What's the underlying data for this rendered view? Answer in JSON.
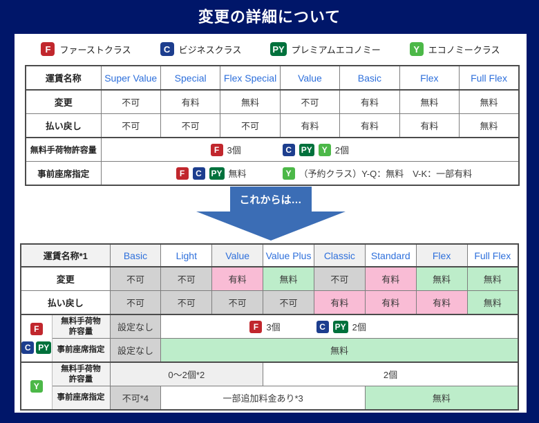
{
  "page": {
    "title": "変更の詳細について"
  },
  "colors": {
    "background_navy": "#001669",
    "arrow_blue": "#3b6db5",
    "column_header_blue": "#2d6fdb",
    "badge_first": "#c1272d",
    "badge_business": "#1d3e8e",
    "badge_premium_economy": "#00713c",
    "badge_economy": "#4cb848",
    "cell_not_allowed_gray": "#d2d2d2",
    "cell_paid_pink": "#f9bcd5",
    "cell_free_green": "#bdedca"
  },
  "legend": {
    "items": [
      {
        "code": "F",
        "name": "first-class",
        "label": "ファーストクラス"
      },
      {
        "code": "C",
        "name": "business-class",
        "label": "ビジネスクラス"
      },
      {
        "code": "PY",
        "name": "premium-economy",
        "label": "プレミアムエコノミー"
      },
      {
        "code": "Y",
        "name": "economy-class",
        "label": "エコノミークラス"
      }
    ]
  },
  "before_table": {
    "columns": [
      "運賃名称",
      "Super Value",
      "Special",
      "Flex Special",
      "Value",
      "Basic",
      "Flex",
      "Full Flex"
    ],
    "rows": [
      {
        "label": "変更",
        "cells": [
          "不可",
          "有料",
          "無料",
          "不可",
          "有料",
          "無料",
          "無料"
        ]
      },
      {
        "label": "払い戻し",
        "cells": [
          "不可",
          "不可",
          "不可",
          "有料",
          "有料",
          "有料",
          "無料"
        ]
      }
    ],
    "baggage_row": {
      "label": "無料手荷物許容量",
      "groups": [
        {
          "badges": [
            "F"
          ],
          "text": "3個"
        },
        {
          "badges": [
            "C",
            "PY",
            "Y"
          ],
          "text": "2個"
        }
      ]
    },
    "seat_row": {
      "label": "事前座席指定",
      "groups": [
        {
          "badges": [
            "F",
            "C",
            "PY"
          ],
          "text": "無料"
        },
        {
          "badges": [
            "Y"
          ],
          "text": "（予約クラス）Y-Q：無料　V-K：一部有料"
        }
      ]
    }
  },
  "arrow": {
    "label": "これからは…"
  },
  "after_table": {
    "columns": [
      "運賃名称*1",
      "Basic",
      "Light",
      "Value",
      "Value Plus",
      "Classic",
      "Standard",
      "Flex",
      "Full Flex"
    ],
    "rows": [
      {
        "label": "変更",
        "cells": [
          {
            "text": "不可",
            "state": "na"
          },
          {
            "text": "不可",
            "state": "na"
          },
          {
            "text": "有料",
            "state": "paid"
          },
          {
            "text": "無料",
            "state": "free"
          },
          {
            "text": "不可",
            "state": "na"
          },
          {
            "text": "有料",
            "state": "paid"
          },
          {
            "text": "無料",
            "state": "free"
          },
          {
            "text": "無料",
            "state": "free"
          }
        ]
      },
      {
        "label": "払い戻し",
        "cells": [
          {
            "text": "不可",
            "state": "na"
          },
          {
            "text": "不可",
            "state": "na"
          },
          {
            "text": "不可",
            "state": "na"
          },
          {
            "text": "不可",
            "state": "na"
          },
          {
            "text": "有料",
            "state": "paid"
          },
          {
            "text": "有料",
            "state": "paid"
          },
          {
            "text": "有料",
            "state": "paid"
          },
          {
            "text": "無料",
            "state": "free"
          }
        ]
      }
    ],
    "fcpy_group": {
      "badges_top": [
        "F"
      ],
      "badges_bottom": [
        "C",
        "PY"
      ],
      "baggage": {
        "label": "無料手荷物\n許容量",
        "basic_cell": {
          "text": "設定なし",
          "state": "na"
        },
        "span_groups": [
          {
            "badges": [
              "F"
            ],
            "text": "3個"
          },
          {
            "badges": [
              "C",
              "PY"
            ],
            "text": "2個"
          }
        ]
      },
      "seat": {
        "label": "事前座席指定",
        "basic_cell": {
          "text": "設定なし",
          "state": "na"
        },
        "span_cell": {
          "text": "無料",
          "state": "free"
        }
      }
    },
    "y_group": {
      "badges": [
        "Y"
      ],
      "baggage": {
        "label": "無料手荷物\n許容量",
        "cells": [
          {
            "text": "0〜2個*2",
            "state": "light",
            "colspan": 3
          },
          {
            "text": "2個",
            "state": "white",
            "colspan": 5
          }
        ]
      },
      "seat": {
        "label": "事前座席指定",
        "cells": [
          {
            "text": "不可*4",
            "state": "na",
            "colspan": 1
          },
          {
            "text": "一部追加料金あり*3",
            "state": "white",
            "colspan": 4
          },
          {
            "text": "無料",
            "state": "free",
            "colspan": 3
          }
        ]
      }
    }
  }
}
